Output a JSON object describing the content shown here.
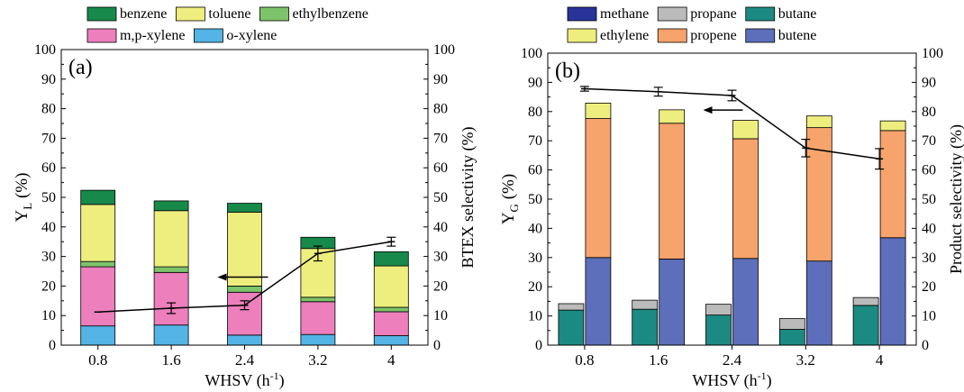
{
  "colors": {
    "benzene": "#17894a",
    "toluene": "#eeee7e",
    "ethylbenzene": "#7dc36a",
    "mp_xylene": "#ec7fbc",
    "o_xylene": "#53b4e5",
    "methane": "#29349a",
    "propane": "#bbbbbb",
    "butane": "#1b8a82",
    "ethylene": "#eeee7e",
    "propene": "#f7a36c",
    "butene": "#5d6fba"
  },
  "chart_data": [
    {
      "type": "bar",
      "stacked": true,
      "panel_label": "(a)",
      "xlabel": "WHSV (h",
      "xlabel_sup": "-1",
      "xlabel_close": ")",
      "ylabel": "Y",
      "ylabel_sub": "L",
      "ylabel_unit": "(%)",
      "y2label": "BTEX selectivity (%)",
      "categories": [
        "0.8",
        "1.6",
        "2.4",
        "3.2",
        "4"
      ],
      "ylim": [
        0,
        100
      ],
      "y2lim": [
        0,
        100
      ],
      "yticks": [
        "0",
        "10",
        "20",
        "30",
        "40",
        "50",
        "60",
        "70",
        "80",
        "90",
        "100"
      ],
      "legend_rows": [
        [
          "benzene",
          "toluene",
          "ethylbenzene"
        ],
        [
          "m,p-xylene",
          "o-xylene"
        ]
      ],
      "series": [
        {
          "name": "o-xylene",
          "color_key": "o_xylene",
          "values": [
            6.5,
            6.8,
            3.4,
            3.6,
            3.2
          ]
        },
        {
          "name": "m,p-xylene",
          "color_key": "mp_xylene",
          "values": [
            20.0,
            17.8,
            14.5,
            11.1,
            8.1
          ]
        },
        {
          "name": "ethylbenzene",
          "color_key": "ethylbenzene",
          "values": [
            1.8,
            1.9,
            2.1,
            1.5,
            1.5
          ]
        },
        {
          "name": "toluene",
          "color_key": "toluene",
          "values": [
            19.3,
            19.0,
            25.0,
            16.5,
            14.0
          ]
        },
        {
          "name": "benzene",
          "color_key": "benzene",
          "values": [
            4.8,
            3.3,
            3.0,
            3.8,
            4.8
          ]
        }
      ],
      "line": {
        "values": [
          11.2,
          12.5,
          13.5,
          31.0,
          35.0
        ],
        "errors": [
          0,
          1.8,
          1.5,
          2.5,
          1.5
        ]
      },
      "arrow": {
        "direction": "right",
        "from": {
          "x": 2.4,
          "y": 23
        }
      }
    },
    {
      "type": "bar",
      "stacked": true,
      "grouped_pairs": true,
      "panel_label": "(b)",
      "xlabel": "WHSV (h",
      "xlabel_sup": "-1",
      "xlabel_close": ")",
      "ylabel": "Y",
      "ylabel_sub": "G",
      "ylabel_unit": "(%)",
      "y2label": "Product selectivity (%)",
      "categories": [
        "0.8",
        "1.6",
        "2.4",
        "3.2",
        "4"
      ],
      "ylim": [
        0,
        100
      ],
      "y2lim": [
        0,
        100
      ],
      "yticks": [
        "0",
        "10",
        "20",
        "30",
        "40",
        "50",
        "60",
        "70",
        "80",
        "90",
        "100"
      ],
      "legend_rows": [
        [
          "methane",
          "propane",
          "butane"
        ],
        [
          "ethylene",
          "propene",
          "butene"
        ]
      ],
      "series_left": [
        {
          "name": "methane",
          "color_key": "methane",
          "values": [
            0,
            0,
            0,
            0,
            0
          ]
        },
        {
          "name": "butane",
          "color_key": "butane",
          "values": [
            12.0,
            12.3,
            10.3,
            5.4,
            13.6
          ]
        },
        {
          "name": "propane",
          "color_key": "propane",
          "values": [
            2.2,
            3.1,
            3.7,
            3.7,
            2.7
          ]
        }
      ],
      "series_right": [
        {
          "name": "butene",
          "color_key": "butene",
          "values": [
            30.0,
            29.5,
            29.7,
            28.8,
            36.8
          ]
        },
        {
          "name": "propene",
          "color_key": "propene",
          "values": [
            47.6,
            46.5,
            41.0,
            45.7,
            36.7
          ]
        },
        {
          "name": "ethylene",
          "color_key": "ethylene",
          "values": [
            5.3,
            4.6,
            6.3,
            4.0,
            3.3
          ]
        }
      ],
      "line": {
        "values": [
          87.8,
          86.8,
          85.5,
          67.5,
          63.8
        ],
        "errors": [
          0.8,
          1.5,
          1.8,
          3.0,
          3.5
        ]
      },
      "arrow": {
        "direction": "left",
        "from": {
          "x": 2.4,
          "y": 80.5
        }
      }
    }
  ]
}
